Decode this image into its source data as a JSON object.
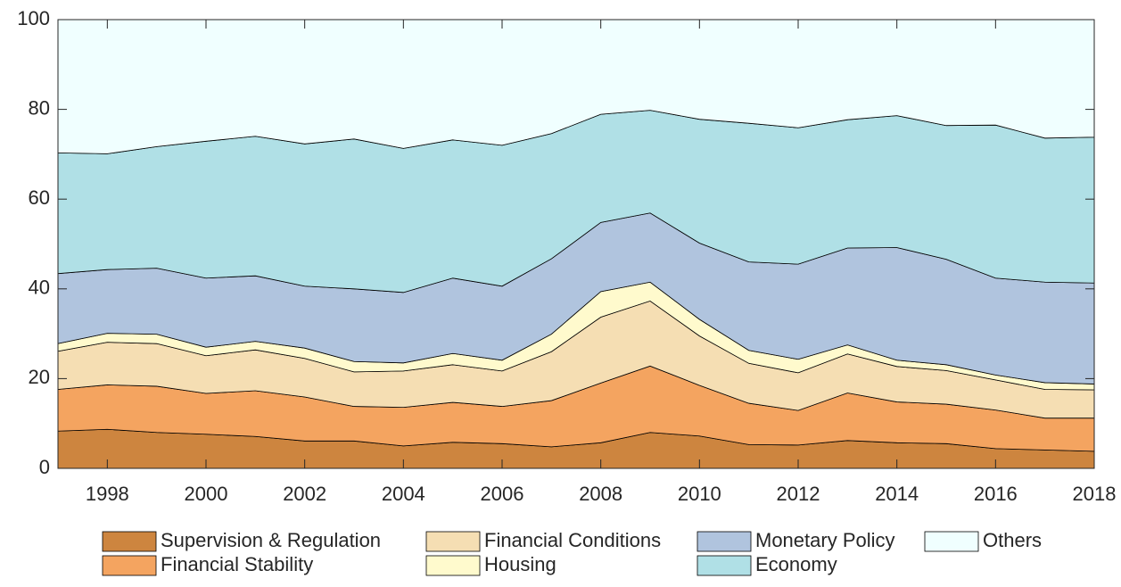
{
  "chart_data": {
    "type": "stacked-area",
    "x": [
      1997,
      1998,
      1999,
      2000,
      2001,
      2002,
      2003,
      2004,
      2005,
      2006,
      2007,
      2008,
      2009,
      2010,
      2011,
      2012,
      2013,
      2014,
      2015,
      2016,
      2017,
      2018
    ],
    "xlim": [
      1997,
      2018
    ],
    "xticks": [
      1998,
      2000,
      2002,
      2004,
      2006,
      2008,
      2010,
      2012,
      2014,
      2016,
      2018
    ],
    "ylim": [
      0,
      100
    ],
    "yticks": [
      0,
      20,
      40,
      60,
      80,
      100
    ],
    "series": [
      {
        "name": "Supervision & Regulation",
        "color": "#cd853f",
        "values": [
          8.3,
          8.7,
          8.0,
          7.6,
          7.1,
          6.1,
          6.1,
          5.0,
          5.8,
          5.5,
          4.8,
          5.7,
          8.0,
          7.2,
          5.3,
          5.2,
          6.2,
          5.7,
          5.5,
          4.4,
          4.1,
          3.8
        ]
      },
      {
        "name": "Financial Stability",
        "color": "#f4a460",
        "values": [
          9.3,
          9.9,
          10.3,
          9.1,
          10.2,
          9.8,
          7.7,
          8.6,
          8.9,
          8.3,
          10.3,
          13.3,
          14.8,
          11.3,
          9.2,
          7.7,
          10.6,
          9.1,
          8.8,
          8.6,
          7.1,
          7.4
        ]
      },
      {
        "name": "Financial Conditions",
        "color": "#f5deb3",
        "values": [
          8.5,
          9.5,
          9.5,
          8.4,
          9.1,
          8.6,
          7.7,
          8.1,
          8.4,
          7.9,
          10.9,
          14.7,
          14.5,
          11.0,
          8.9,
          8.4,
          8.7,
          7.9,
          7.5,
          6.7,
          6.4,
          6.3
        ]
      },
      {
        "name": "Housing",
        "color": "#fffacd",
        "values": [
          1.7,
          2.0,
          2.1,
          1.9,
          1.9,
          2.3,
          2.3,
          1.8,
          2.5,
          2.4,
          3.9,
          5.7,
          4.2,
          3.7,
          2.9,
          3.0,
          2.0,
          1.4,
          1.3,
          1.1,
          1.5,
          1.3
        ]
      },
      {
        "name": "Monetary Policy",
        "color": "#b0c4de",
        "values": [
          15.6,
          14.2,
          14.7,
          15.4,
          14.6,
          13.8,
          16.2,
          15.7,
          16.8,
          16.5,
          16.8,
          15.4,
          15.4,
          17.0,
          19.7,
          21.2,
          21.6,
          25.1,
          23.5,
          21.6,
          22.4,
          22.5
        ]
      },
      {
        "name": "Economy",
        "color": "#b0e0e6",
        "values": [
          26.9,
          25.8,
          27.1,
          30.5,
          31.1,
          31.7,
          33.4,
          32.1,
          30.8,
          31.4,
          27.9,
          24.1,
          22.9,
          27.6,
          30.9,
          30.4,
          28.6,
          29.4,
          29.8,
          34.1,
          32.1,
          32.5
        ]
      },
      {
        "name": "Others",
        "color": "#f0ffff",
        "values": [
          29.7,
          29.9,
          28.3,
          27.1,
          26.0,
          27.7,
          26.6,
          28.7,
          26.8,
          28.0,
          25.4,
          21.1,
          20.2,
          22.2,
          23.1,
          24.1,
          22.3,
          21.4,
          23.6,
          23.5,
          26.4,
          26.2
        ]
      }
    ]
  }
}
